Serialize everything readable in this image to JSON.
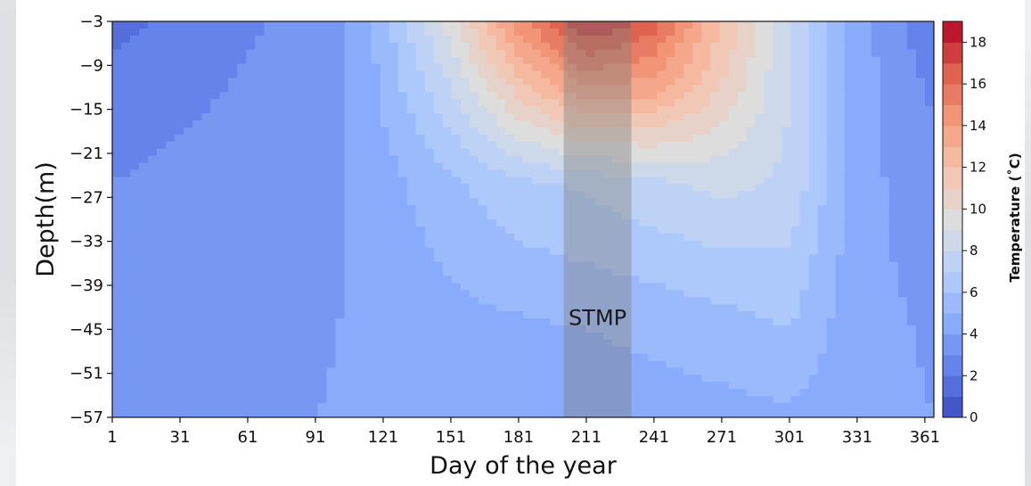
{
  "chart_data": {
    "type": "heatmap",
    "title": "",
    "xlabel": "Day of the year",
    "ylabel": "Depth(m)",
    "xlim": [
      1,
      365
    ],
    "ylim": [
      -57,
      -3
    ],
    "x_ticks": [
      1,
      31,
      61,
      91,
      121,
      151,
      181,
      211,
      241,
      271,
      301,
      331,
      361
    ],
    "y_ticks": [
      -3,
      -9,
      -15,
      -21,
      -27,
      -33,
      -39,
      -45,
      -51,
      -57
    ],
    "colorbar": {
      "label": "Temperature (˚C)",
      "range": [
        0,
        19
      ],
      "ticks": [
        0,
        2,
        4,
        6,
        8,
        10,
        12,
        14,
        16,
        18
      ],
      "colormap": "coolwarm",
      "low_color": "#3b4cc0",
      "mid_color": "#dddddd",
      "high_color": "#b40426"
    },
    "temperature_profiles": [
      {
        "day": 1,
        "depths": [
          -3,
          -12,
          -25,
          -45,
          -57
        ],
        "temps": [
          1.5,
          2.5,
          3.0,
          3.8,
          4.0
        ]
      },
      {
        "day": 31,
        "depths": [
          -3,
          -12,
          -25,
          -45,
          -57
        ],
        "temps": [
          2.5,
          2.8,
          3.2,
          3.8,
          4.0
        ]
      },
      {
        "day": 91,
        "depths": [
          -3,
          -12,
          -25,
          -45,
          -57
        ],
        "temps": [
          3.3,
          3.4,
          3.5,
          3.9,
          4.0
        ]
      },
      {
        "day": 111,
        "depths": [
          -3,
          -12,
          -25,
          -45,
          -57
        ],
        "temps": [
          4.3,
          4.3,
          4.2,
          4.1,
          4.1
        ]
      },
      {
        "day": 151,
        "depths": [
          -3,
          -12,
          -25,
          -45,
          -57
        ],
        "temps": [
          9.5,
          8.0,
          5.8,
          4.6,
          4.3
        ]
      },
      {
        "day": 181,
        "depths": [
          -3,
          -12,
          -25,
          -45,
          -57
        ],
        "temps": [
          14.5,
          11.5,
          6.8,
          4.8,
          4.4
        ]
      },
      {
        "day": 211,
        "depths": [
          -3,
          -12,
          -25,
          -45,
          -57
        ],
        "temps": [
          18.2,
          14.0,
          7.2,
          5.0,
          4.5
        ]
      },
      {
        "day": 241,
        "depths": [
          -3,
          -12,
          -25,
          -45,
          -57
        ],
        "temps": [
          16.5,
          13.5,
          7.8,
          5.2,
          4.6
        ]
      },
      {
        "day": 271,
        "depths": [
          -3,
          -12,
          -25,
          -45,
          -57
        ],
        "temps": [
          12.0,
          11.0,
          8.3,
          5.5,
          4.7
        ]
      },
      {
        "day": 301,
        "depths": [
          -3,
          -12,
          -25,
          -45,
          -57
        ],
        "temps": [
          8.0,
          8.0,
          7.8,
          6.0,
          4.8
        ]
      },
      {
        "day": 331,
        "depths": [
          -3,
          -12,
          -25,
          -45,
          -57
        ],
        "temps": [
          4.5,
          4.5,
          4.4,
          4.3,
          4.2
        ]
      },
      {
        "day": 365,
        "depths": [
          -3,
          -12,
          -25,
          -45,
          -57
        ],
        "temps": [
          2.0,
          2.8,
          3.3,
          3.9,
          4.0
        ]
      }
    ],
    "highlight_band": {
      "label": "STMP",
      "x_start": 201,
      "x_end": 231
    }
  }
}
